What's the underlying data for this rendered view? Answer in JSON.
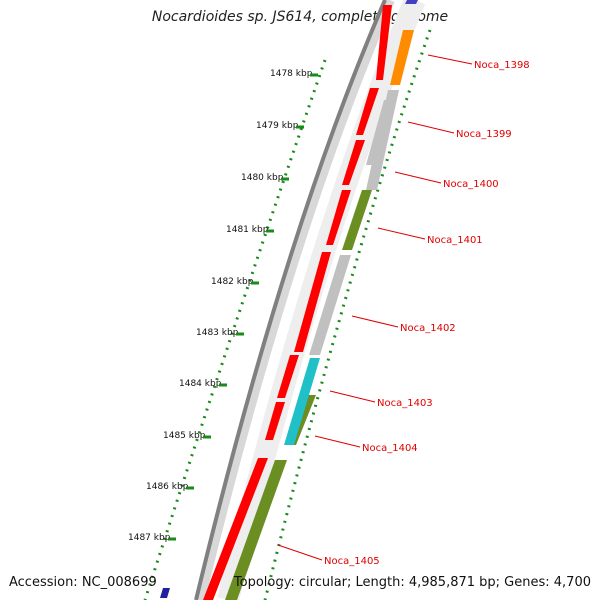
{
  "title": "Nocardioides sp. JS614, complete genome",
  "footer": {
    "accession": "Accession: NC_008699",
    "summary": "Topology: circular; Length: 4,985,871 bp; Genes: 4,700"
  },
  "ticks": [
    "1478 kbp",
    "1479 kbp",
    "1480 kbp",
    "1481 kbp",
    "1482 kbp",
    "1483 kbp",
    "1484 kbp",
    "1485 kbp",
    "1486 kbp",
    "1487 kbp"
  ],
  "genes": [
    {
      "label": "Noca_1398",
      "color": "#ff8c00"
    },
    {
      "label": "Noca_1399",
      "color": "#c0c0c0"
    },
    {
      "label": "Noca_1400",
      "color": "#c0c0c0"
    },
    {
      "label": "Noca_1401",
      "color": "#6b8e23"
    },
    {
      "label": "Noca_1402",
      "color": "#c0c0c0"
    },
    {
      "label": "Noca_1403",
      "color": "#6b8e23"
    },
    {
      "label": "Noca_1404",
      "color": "#20c0c8"
    },
    {
      "label": "Noca_1405",
      "color": "#6b8e23"
    }
  ],
  "colors": {
    "cds": "#ff0000",
    "backbone": "#808080",
    "tick_marks": "#1a8a1a"
  }
}
